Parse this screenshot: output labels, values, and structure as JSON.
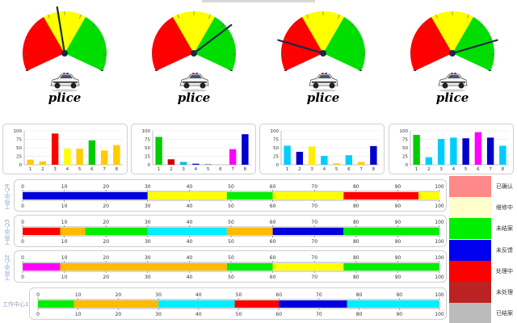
{
  "gauges": [
    {
      "label": "plice",
      "needle_value": 46,
      "icon": "police-car-icon"
    },
    {
      "label": "plice",
      "needle_value": 73,
      "icon": "police-car-icon"
    },
    {
      "label": "plice",
      "needle_value": 18,
      "icon": "police-car-icon"
    },
    {
      "label": "plice",
      "needle_value": 82,
      "icon": "police-car-icon"
    }
  ],
  "gauge_colors": {
    "low": "#ff0000",
    "mid": "#ffff00",
    "high": "#00dd00"
  },
  "chart_data": [
    {
      "type": "bar",
      "categories": [
        "1",
        "2",
        "3",
        "4",
        "5",
        "6",
        "7",
        "8"
      ],
      "ylim": [
        0,
        100
      ],
      "yticks": [
        "100",
        "75",
        "50",
        "25",
        "0"
      ],
      "values": [
        15,
        10,
        92,
        48,
        47,
        72,
        42,
        58
      ],
      "colors": [
        "#ffcc00",
        "#ffcc00",
        "#ff0000",
        "#ffff00",
        "#ffcc00",
        "#00cc00",
        "#ffcc00",
        "#ffcc00"
      ]
    },
    {
      "type": "bar",
      "categories": [
        "1",
        "2",
        "3",
        "4",
        "5",
        "6",
        "7",
        "8"
      ],
      "ylim": [
        0,
        100
      ],
      "yticks": [
        "100",
        "75",
        "50",
        "25",
        "0"
      ],
      "values": [
        82,
        16,
        8,
        3,
        2,
        0,
        46,
        90
      ],
      "colors": [
        "#00cc00",
        "#cc0000",
        "#00bbdd",
        "#0000cc",
        "#888888",
        "#888888",
        "#ff00ff",
        "#0000cc"
      ]
    },
    {
      "type": "bar",
      "categories": [
        "1",
        "2",
        "3",
        "4",
        "5",
        "6",
        "7",
        "8"
      ],
      "ylim": [
        0,
        100
      ],
      "yticks": [
        "100",
        "75",
        "50",
        "25",
        "0"
      ],
      "values": [
        56,
        38,
        54,
        26,
        4,
        28,
        8,
        55
      ],
      "colors": [
        "#00ccff",
        "#0000cc",
        "#ffee00",
        "#00ccff",
        "#ffcc00",
        "#00ccff",
        "#ffcc00",
        "#0000cc"
      ]
    },
    {
      "type": "bar",
      "categories": [
        "1",
        "2",
        "3",
        "4",
        "5",
        "6",
        "7",
        "8"
      ],
      "ylim": [
        0,
        100
      ],
      "yticks": [
        "100",
        "75",
        "50",
        "25",
        "0"
      ],
      "values": [
        88,
        22,
        76,
        80,
        78,
        96,
        80,
        56
      ],
      "colors": [
        "#00cc00",
        "#00ccff",
        "#00ccff",
        "#00ccff",
        "#0000cc",
        "#ff00ff",
        "#0000cc",
        "#00ccff"
      ]
    }
  ],
  "lanes": [
    {
      "label": "工作中心4",
      "ticks": [
        "0",
        "10",
        "20",
        "30",
        "40",
        "50",
        "60",
        "70",
        "80",
        "90",
        "100"
      ],
      "segments": [
        {
          "from": 0,
          "to": 30,
          "color": "#0000dd"
        },
        {
          "from": 30,
          "to": 49,
          "color": "#ffff00"
        },
        {
          "from": 49,
          "to": 60,
          "color": "#00ee00"
        },
        {
          "from": 60,
          "to": 77,
          "color": "#ffff00"
        },
        {
          "from": 77,
          "to": 95,
          "color": "#ff0000"
        },
        {
          "from": 95,
          "to": 100,
          "color": "#ffff00"
        }
      ]
    },
    {
      "label": "工作中心3",
      "ticks": [
        "0",
        "10",
        "20",
        "30",
        "40",
        "50",
        "60",
        "70",
        "80",
        "90",
        "100"
      ],
      "segments": [
        {
          "from": 0,
          "to": 9,
          "color": "#ff0000"
        },
        {
          "from": 9,
          "to": 15,
          "color": "#ffbb00"
        },
        {
          "from": 15,
          "to": 30,
          "color": "#00ee00"
        },
        {
          "from": 30,
          "to": 49,
          "color": "#00eeff"
        },
        {
          "from": 49,
          "to": 60,
          "color": "#ffbb00"
        },
        {
          "from": 60,
          "to": 77,
          "color": "#0000dd"
        },
        {
          "from": 77,
          "to": 100,
          "color": "#00ee00"
        }
      ]
    },
    {
      "label": "工作中心2",
      "ticks": [
        "0",
        "10",
        "20",
        "30",
        "40",
        "50",
        "60",
        "70",
        "80",
        "90",
        "100"
      ],
      "segments": [
        {
          "from": 0,
          "to": 9,
          "color": "#ff00ff"
        },
        {
          "from": 9,
          "to": 49,
          "color": "#ffbb00"
        },
        {
          "from": 49,
          "to": 60,
          "color": "#00ee00"
        },
        {
          "from": 60,
          "to": 77,
          "color": "#ffff00"
        },
        {
          "from": 77,
          "to": 100,
          "color": "#00ee00"
        }
      ]
    },
    {
      "label": "工作中心1",
      "ticks": [
        "0",
        "10",
        "20",
        "30",
        "40",
        "50",
        "60",
        "70",
        "80",
        "90",
        "100"
      ],
      "segments": [
        {
          "from": 0,
          "to": 9,
          "color": "#00ee00"
        },
        {
          "from": 9,
          "to": 30,
          "color": "#ffbb00"
        },
        {
          "from": 30,
          "to": 49,
          "color": "#00eeff"
        },
        {
          "from": 49,
          "to": 60,
          "color": "#ff0000"
        },
        {
          "from": 60,
          "to": 77,
          "color": "#0000dd"
        },
        {
          "from": 77,
          "to": 100,
          "color": "#00eeff"
        }
      ]
    }
  ],
  "legend": [
    {
      "label": "已确认",
      "color": "#ff8888"
    },
    {
      "label": "维修中",
      "color": "#ffffcc"
    },
    {
      "label": "未结案",
      "color": "#00ee00"
    },
    {
      "label": "未反馈",
      "color": "#0000ee"
    },
    {
      "label": "处理中",
      "color": "#ff0000"
    },
    {
      "label": "未处理",
      "color": "#bb2222"
    },
    {
      "label": "已结案",
      "color": "#bbbbbb"
    }
  ]
}
